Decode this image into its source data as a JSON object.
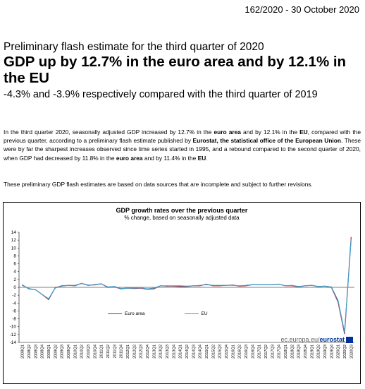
{
  "release_ref": "162/2020  -  30 October 2020",
  "supertitle": "Preliminary flash estimate for the third quarter of 2020",
  "headline": "GDP up by 12.7% in the euro area and by 12.1% in the EU",
  "subtitle": "-4.3% and -3.9% respectively compared with the third quarter of 2019",
  "paragraph1": [
    {
      "t": "In the third quarter 2020, seasonally adjusted GDP increased by 12.7% in the ",
      "b": false
    },
    {
      "t": "euro area",
      "b": true
    },
    {
      "t": " and by 12.1% in the ",
      "b": false
    },
    {
      "t": "EU",
      "b": true
    },
    {
      "t": ", compared with the previous quarter, according to a preliminary flash estimate published by ",
      "b": false
    },
    {
      "t": "Eurostat, the statistical office of the European Union",
      "b": true
    },
    {
      "t": ". These were by far the sharpest increases observed since time series started in 1995, and a rebound compared to the second quarter of 2020, when GDP had decreased by 11.8% in the ",
      "b": false
    },
    {
      "t": "euro area",
      "b": true
    },
    {
      "t": " and by 11.4% in the ",
      "b": false
    },
    {
      "t": "EU",
      "b": true
    },
    {
      "t": ".",
      "b": false
    }
  ],
  "paragraph2": "These preliminary GDP flash estimates are based on data sources that are incomplete and subject to further revisions.",
  "chart_source": "ec.europa.eu/",
  "chart_source_bold": "eurostat",
  "chart_data": {
    "type": "line",
    "title": "GDP growth rates over the previous quarter",
    "subtitle": "% change, based on seasonally adjusted data",
    "xlabel": "",
    "ylabel": "",
    "ylim": [
      -14,
      14
    ],
    "yticks": [
      14,
      12,
      10,
      8,
      6,
      4,
      2,
      0,
      -2,
      -4,
      -6,
      -8,
      -10,
      -12,
      -14
    ],
    "grid": false,
    "legend_position": "bottom-center",
    "categories": [
      "2008Q1",
      "2008Q2",
      "2008Q3",
      "2008Q4",
      "2009Q1",
      "2009Q2",
      "2009Q3",
      "2009Q4",
      "2010Q1",
      "2010Q2",
      "2010Q3",
      "2010Q4",
      "2011Q1",
      "2011Q2",
      "2011Q3",
      "2011Q4",
      "2012Q1",
      "2012Q2",
      "2012Q3",
      "2012Q4",
      "2013Q1",
      "2013Q2",
      "2013Q3",
      "2013Q4",
      "2014Q1",
      "2014Q2",
      "2014Q3",
      "2014Q4",
      "2015Q1",
      "2015Q2",
      "2015Q3",
      "2015Q4",
      "2016Q1",
      "2016Q2",
      "2016Q3",
      "2016Q4",
      "2017Q1",
      "2017Q2",
      "2017Q3",
      "2017Q4",
      "2018Q1",
      "2018Q2",
      "2018Q3",
      "2018Q4",
      "2019Q1",
      "2019Q2",
      "2019Q3",
      "2019Q4",
      "2020Q1",
      "2020Q2",
      "2020Q3"
    ],
    "series": [
      {
        "name": "Euro area",
        "color": "#c0202a",
        "values": [
          0.6,
          -0.4,
          -0.6,
          -1.8,
          -3.1,
          -0.1,
          0.4,
          0.5,
          0.4,
          1.0,
          0.5,
          0.7,
          0.9,
          0.0,
          0.1,
          -0.4,
          -0.2,
          -0.3,
          -0.2,
          -0.5,
          -0.4,
          0.4,
          0.3,
          0.3,
          0.2,
          0.2,
          0.4,
          0.4,
          0.8,
          0.4,
          0.4,
          0.5,
          0.6,
          0.3,
          0.4,
          0.7,
          0.7,
          0.7,
          0.7,
          0.8,
          0.4,
          0.4,
          0.1,
          0.4,
          0.5,
          0.2,
          0.3,
          0.0,
          -3.7,
          -11.8,
          12.7
        ]
      },
      {
        "name": "EU",
        "color": "#3aa0d0",
        "values": [
          0.5,
          -0.3,
          -0.6,
          -1.8,
          -2.9,
          -0.2,
          0.3,
          0.5,
          0.5,
          1.0,
          0.6,
          0.6,
          0.9,
          0.1,
          0.2,
          -0.3,
          -0.2,
          -0.2,
          -0.1,
          -0.4,
          -0.2,
          0.4,
          0.4,
          0.4,
          0.4,
          0.3,
          0.4,
          0.5,
          0.7,
          0.5,
          0.5,
          0.5,
          0.5,
          0.4,
          0.5,
          0.7,
          0.7,
          0.7,
          0.7,
          0.8,
          0.4,
          0.5,
          0.2,
          0.4,
          0.5,
          0.2,
          0.3,
          0.1,
          -3.3,
          -11.4,
          12.1
        ]
      }
    ]
  }
}
